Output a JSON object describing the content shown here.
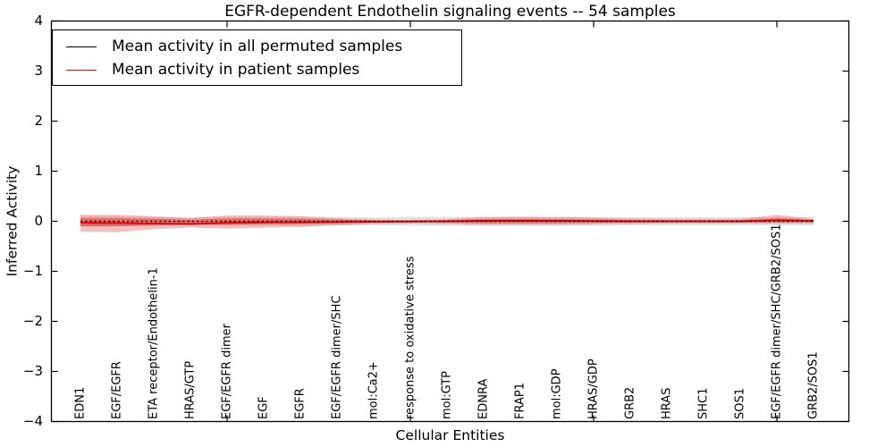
{
  "title": "EGFR-dependent Endothelin signaling events -- 54 samples",
  "legend": {
    "entries": [
      {
        "label": "Mean activity in all permuted samples",
        "color": "#000000"
      },
      {
        "label": "Mean activity in patient samples",
        "color": "#ff0000"
      }
    ]
  },
  "chart_data": {
    "type": "line",
    "title": "EGFR-dependent Endothelin signaling events -- 54 samples",
    "xlabel": "Cellular Entities",
    "ylabel": "Inferred Activity",
    "ylim": [
      -4,
      4
    ],
    "yticks": [
      4,
      3,
      2,
      1,
      0,
      -1,
      -2,
      -3,
      -4
    ],
    "xticks_at_category_index": [
      4,
      9,
      14,
      19
    ],
    "grid": false,
    "legend_position": "upper left",
    "categories": [
      "EDN1",
      "EGF/EGFR",
      "ETA receptor/Endothelin-1",
      "HRAS/GTP",
      "EGF/EGFR dimer",
      "EGF",
      "EGFR",
      "EGF/EGFR dimer/SHC",
      "mol:Ca2+",
      "response to oxidative stress",
      "mol:GTP",
      "EDNRA",
      "FRAP1",
      "mol:GDP",
      "HRAS/GDP",
      "GRB2",
      "HRAS",
      "SHC1",
      "SOS1",
      "EGF/EGFR dimer/SHC/GRB2/SOS1",
      "GRB2/SOS1"
    ],
    "series": [
      {
        "name": "Mean activity in all permuted samples",
        "color": "#000000",
        "line_style": "dashed",
        "values": [
          0,
          0,
          0,
          0,
          0,
          0,
          0,
          0,
          0,
          0,
          0,
          0,
          0,
          0,
          0,
          0,
          0,
          0,
          0,
          0,
          0
        ]
      },
      {
        "name": "Mean activity in patient samples",
        "color": "#e00000",
        "line_style": "solid",
        "values": [
          -0.03,
          -0.035,
          -0.045,
          -0.055,
          -0.03,
          -0.02,
          -0.02,
          -0.015,
          -0.01,
          -0.005,
          0.0,
          0.01,
          0.01,
          0.01,
          0.005,
          0.0,
          0.0,
          0.0,
          0.0,
          0.02,
          0.01
        ]
      }
    ],
    "bands": [
      {
        "name": "permuted-samples-range",
        "color": "rgba(120,120,120,0.22)",
        "upper": [
          0.1,
          0.1,
          0.09,
          0.08,
          0.09,
          0.09,
          0.09,
          0.08,
          0.08,
          0.09,
          0.09,
          0.09,
          0.09,
          0.09,
          0.09,
          0.08,
          0.08,
          0.08,
          0.08,
          0.08,
          0.08
        ],
        "lower": [
          -0.1,
          -0.1,
          -0.09,
          -0.08,
          -0.09,
          -0.09,
          -0.09,
          -0.08,
          -0.08,
          -0.09,
          -0.09,
          -0.09,
          -0.09,
          -0.09,
          -0.09,
          -0.08,
          -0.08,
          -0.08,
          -0.08,
          -0.08,
          -0.08
        ]
      },
      {
        "name": "patient-samples-outer-band",
        "color": "rgba(230,45,45,0.30)",
        "upper": [
          0.13,
          0.13,
          0.1,
          0.06,
          0.115,
          0.115,
          0.1,
          0.06,
          0.035,
          0.027,
          0.045,
          0.08,
          0.09,
          0.08,
          0.07,
          0.053,
          0.045,
          0.045,
          0.045,
          0.13,
          0.045
        ],
        "lower": [
          -0.21,
          -0.22,
          -0.16,
          -0.125,
          -0.15,
          -0.13,
          -0.115,
          -0.08,
          -0.053,
          -0.045,
          -0.053,
          -0.07,
          -0.07,
          -0.07,
          -0.06,
          -0.053,
          -0.045,
          -0.045,
          -0.045,
          -0.045,
          -0.045
        ]
      },
      {
        "name": "patient-samples-inner-band",
        "color": "rgba(220,25,25,0.45)",
        "upper": [
          0.06,
          0.06,
          0.05,
          0.03,
          0.055,
          0.055,
          0.05,
          0.03,
          0.018,
          0.013,
          0.02,
          0.04,
          0.045,
          0.04,
          0.035,
          0.025,
          0.02,
          0.02,
          0.02,
          0.06,
          0.02
        ],
        "lower": [
          -0.1,
          -0.1,
          -0.08,
          -0.06,
          -0.07,
          -0.06,
          -0.055,
          -0.04,
          -0.025,
          -0.02,
          -0.025,
          -0.035,
          -0.035,
          -0.035,
          -0.03,
          -0.025,
          -0.02,
          -0.02,
          -0.02,
          -0.02,
          -0.02
        ]
      }
    ]
  }
}
